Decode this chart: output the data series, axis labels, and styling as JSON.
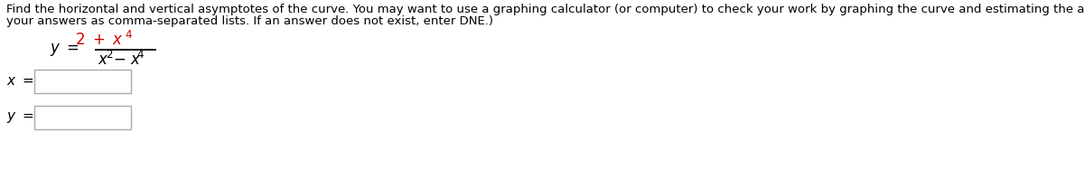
{
  "background_color": "#ffffff",
  "line1": "Find the horizontal and vertical asymptotes of the curve. You may want to use a graphing calculator (or computer) to check your work by graphing the curve and estimating the asymptotes. (Enter",
  "line2": "your answers as comma-separated lists. If an answer does not exist, enter DNE.)",
  "main_text_fontsize": 9.5,
  "text_color": "#000000",
  "red_color": "#cc0000",
  "box_edge_color": "#aaaaaa",
  "box_face_color": "#ffffff",
  "formula_fontsize": 12,
  "super_fontsize": 8.5,
  "label_fontsize": 11
}
